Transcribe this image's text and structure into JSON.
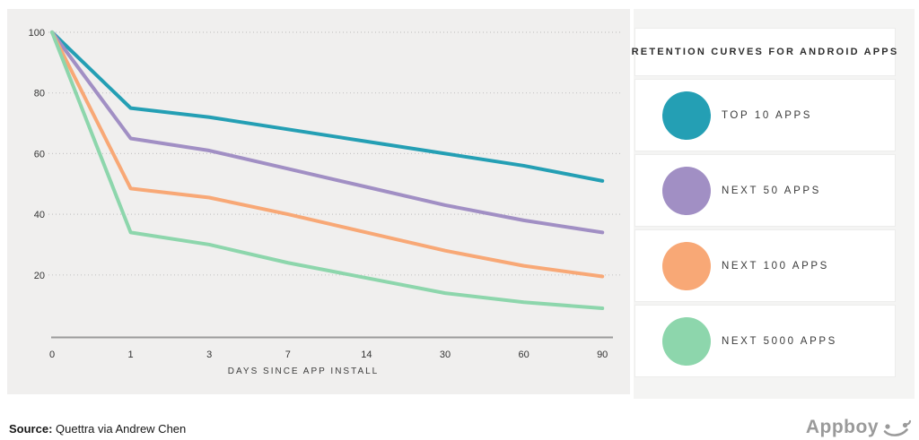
{
  "chart_data": {
    "type": "line",
    "title": "RETENTION CURVES FOR ANDROID APPS",
    "xlabel": "DAYS SINCE APP INSTALL",
    "ylabel": "",
    "categories": [
      "0",
      "1",
      "3",
      "7",
      "14",
      "30",
      "60",
      "90"
    ],
    "yticks": [
      20,
      40,
      60,
      80,
      100
    ],
    "ylim": [
      0,
      105
    ],
    "grid": "horizontal-dotted",
    "legend_position": "right",
    "series": [
      {
        "name": "TOP 10 APPS",
        "color": "#249fb4",
        "values": [
          100,
          75,
          72,
          68,
          64,
          60,
          56,
          51
        ]
      },
      {
        "name": "NEXT 50 APPS",
        "color": "#a18fc4",
        "values": [
          100,
          65,
          61,
          55,
          49,
          43,
          38,
          34
        ]
      },
      {
        "name": "NEXT 100 APPS",
        "color": "#f8a876",
        "values": [
          100,
          48.5,
          45.5,
          40,
          34,
          28,
          23,
          19.5
        ]
      },
      {
        "name": "NEXT 5000 APPS",
        "color": "#8dd6ac",
        "values": [
          100,
          34,
          30,
          24,
          19,
          14,
          11,
          9
        ]
      }
    ]
  },
  "legend": {
    "title": "RETENTION CURVES FOR ANDROID APPS"
  },
  "footer": {
    "source_label": "Source:",
    "source_text": " Quettra via Andrew Chen",
    "brand": "Appboy"
  },
  "colors": {
    "chart_background": "#f0efee",
    "legend_background": "#f4f4f3",
    "gridline": "#c5c5c5",
    "axis": "#9b9b9b",
    "tick_text": "#333333",
    "brand_gray": "#9a9a9a"
  }
}
